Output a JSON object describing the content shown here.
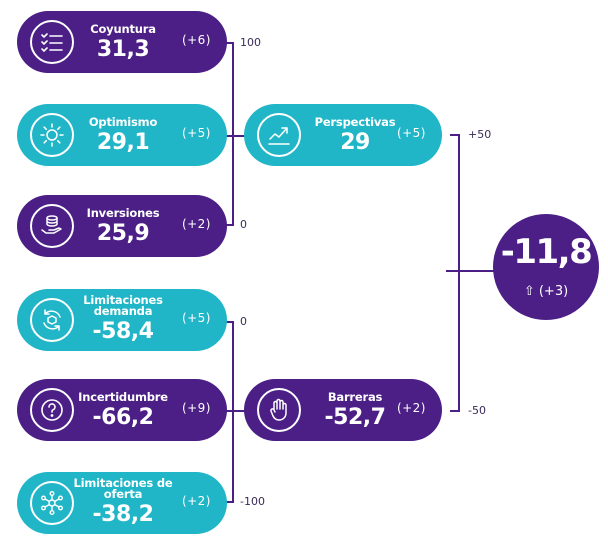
{
  "indicators": [
    {
      "label": "Coyuntura",
      "value": "31,3",
      "delta": "(+6)",
      "icon": "checklist-icon",
      "color": "#4b1f86"
    },
    {
      "label": "Optimismo",
      "value": "29,1",
      "delta": "(+5)",
      "icon": "sun-icon",
      "color": "#21b6c7"
    },
    {
      "label": "Inversiones",
      "value": "25,9",
      "delta": "(+2)",
      "icon": "coins-hand-icon",
      "color": "#4b1f86"
    },
    {
      "label": "Limitaciones demanda",
      "value": "-58,4",
      "delta": "(+5)",
      "icon": "cycle-box-icon",
      "color": "#21b6c7"
    },
    {
      "label": "Incertidumbre",
      "value": "-66,2",
      "delta": "(+9)",
      "icon": "question-icon",
      "color": "#4b1f86"
    },
    {
      "label": "Limitaciones de oferta",
      "value": "-38,2",
      "delta": "(+2)",
      "icon": "network-icon",
      "color": "#21b6c7"
    }
  ],
  "groups": [
    {
      "label": "Perspectivas",
      "value": "29",
      "delta": "(+5)",
      "icon": "trend-chart-icon",
      "color": "#21b6c7"
    },
    {
      "label": "Barreras",
      "value": "-52,7",
      "delta": "(+2)",
      "icon": "hand-stop-icon",
      "color": "#4b1f86"
    }
  ],
  "scales": {
    "upper": {
      "top": "100",
      "bottom": "0"
    },
    "lower": {
      "top": "0",
      "bottom": "-100"
    },
    "main": {
      "top": "+50",
      "bottom": "-50"
    }
  },
  "total": {
    "value": "-11,8",
    "arrow": "⇧",
    "delta": "(+3)",
    "icon": "up-arrow-icon"
  }
}
